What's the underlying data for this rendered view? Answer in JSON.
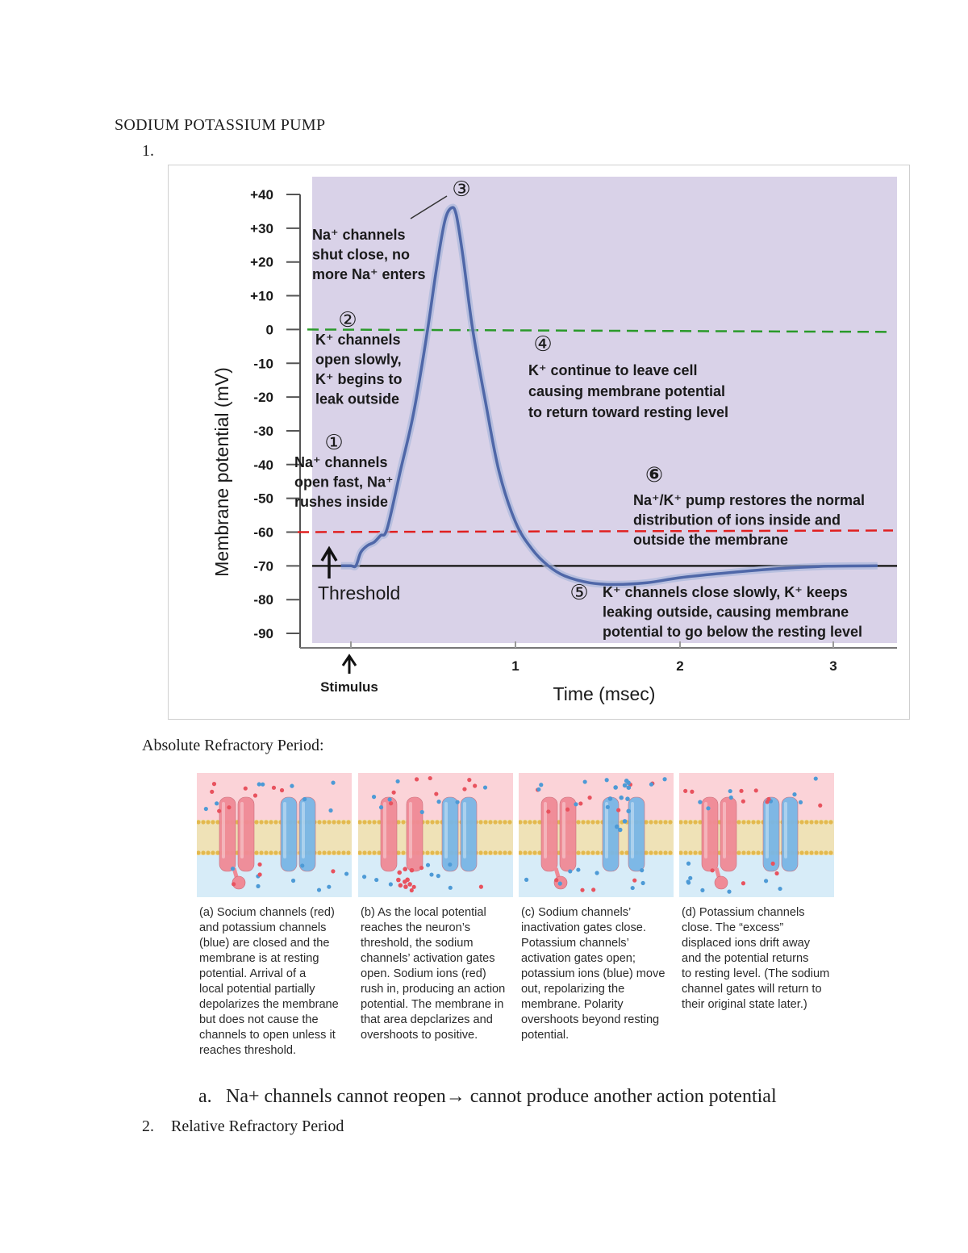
{
  "document": {
    "title": "SODIUM POTASSIUM PUMP",
    "item1_number": "1.",
    "absolute_refractory_label": "Absolute Refractory Period:",
    "sub_item_a": {
      "marker": "a.",
      "text": "Na+ channels cannot reopen→ cannot produce another action potential"
    },
    "item2": {
      "number": "2.",
      "text": "Relative Refractory Period"
    }
  },
  "chart_data": {
    "type": "line",
    "ylabel": "Membrane potential (mV)",
    "xlabel": "Time (msec)",
    "ylim": [
      -90,
      40
    ],
    "y_ticks": [
      "+40",
      "+30",
      "+20",
      "+10",
      "0",
      "-10",
      "-20",
      "-30",
      "-40",
      "-50",
      "-60",
      "-70",
      "-80",
      "-90"
    ],
    "x_ticks": [
      "1",
      "2",
      "3"
    ],
    "stimulus_label": "Stimulus",
    "threshold_label": "Threshold",
    "threshold_mv": -60,
    "zero_mv": 0,
    "resting_mv": -70,
    "series": [
      {
        "x": [
          -0.06,
          0.0,
          0.03,
          0.06,
          0.1,
          0.14,
          0.18,
          0.22,
          0.3,
          0.38,
          0.46,
          0.52,
          0.57,
          0.61,
          0.64,
          0.68,
          0.74,
          0.82,
          0.9,
          1.0,
          1.1,
          1.2,
          1.3,
          1.45,
          1.6,
          1.8,
          2.0,
          2.3,
          2.6,
          2.9,
          3.2
        ],
        "y": [
          -70,
          -70,
          -70,
          -66,
          -64,
          -63,
          -61,
          -59,
          -42,
          -25,
          -2,
          18,
          32,
          36,
          34,
          22,
          0,
          -22,
          -42,
          -57,
          -65,
          -70,
          -73,
          -75,
          -75.5,
          -75,
          -73.5,
          -72,
          -70.8,
          -70.1,
          -70
        ]
      }
    ],
    "colors": {
      "plot_bg": "#d9d2e8",
      "trace": "#6f86bd",
      "zero_line": "#2a9a2a",
      "threshold_line": "#e02020",
      "step6": "#e02020"
    },
    "annotations": {
      "step1": {
        "marker": "①",
        "lines": [
          "Na⁺ channels",
          "open fast, Na⁺",
          "rushes inside"
        ]
      },
      "step2": {
        "marker": "②",
        "lines": [
          "K⁺ channels",
          "open slowly,",
          "K⁺ begins to",
          "leak outside"
        ]
      },
      "step3": {
        "marker": "③",
        "lines": [
          "Na⁺ channels",
          "shut close, no",
          "more Na⁺ enters"
        ]
      },
      "step4": {
        "marker": "④",
        "lines": [
          "K⁺ continue to leave cell",
          "causing membrane potential",
          "to return toward resting level"
        ]
      },
      "step5": {
        "marker": "⑤",
        "lines": [
          "K⁺ channels close slowly, K⁺ keeps",
          "leaking outside, causing membrane",
          "potential to go below  the resting level"
        ]
      },
      "step6": {
        "marker": "⑥",
        "lines": [
          "Na⁺/K⁺ pump restores the normal",
          "distribution of ions inside and",
          "outside the membrane"
        ]
      }
    }
  },
  "figure2": {
    "colors": {
      "sodium_channel": "#f08a96",
      "potassium_channel": "#79b6e6",
      "extracellular": "#fbd3d8",
      "intracellular": "#d7ecf8",
      "bilayer": "#e3b94e"
    },
    "captions": [
      {
        "label": "a",
        "lines": [
          "(a) Socium channels (red)",
          "and potassium channels",
          "(blue) are closed and the",
          "membrane is at resting",
          "potential. Arrival of a",
          "local potential partially",
          "depolarizes the membrane",
          "but does not cause the",
          "channels to open unless it",
          "reaches threshold."
        ]
      },
      {
        "label": "b",
        "lines": [
          "(b) As the local potential",
          "reaches the neuron’s",
          "threshold, the sodium",
          "channels’ activation gates",
          "open. Sodium ions (red)",
          "rush in, producing an action",
          "potential. The membrane in",
          "that area depclarizes and",
          "overshoots to positive."
        ]
      },
      {
        "label": "c",
        "lines": [
          "(c) Sodium channels’",
          "inactivation gates close.",
          "Potassium channels’",
          "activation gates open;",
          "potassium ions (blue) move",
          "out, repolarizing the",
          "membrane. Polarity",
          "overshoots beyond resting",
          "potential."
        ]
      },
      {
        "label": "d",
        "lines": [
          "(d) Potassium channels",
          "close. The “excess”",
          "displaced ions drift away",
          "and the potential returns",
          "to resting level. (The sodium",
          "channel gates will return to",
          "their original state later.)"
        ]
      }
    ]
  }
}
